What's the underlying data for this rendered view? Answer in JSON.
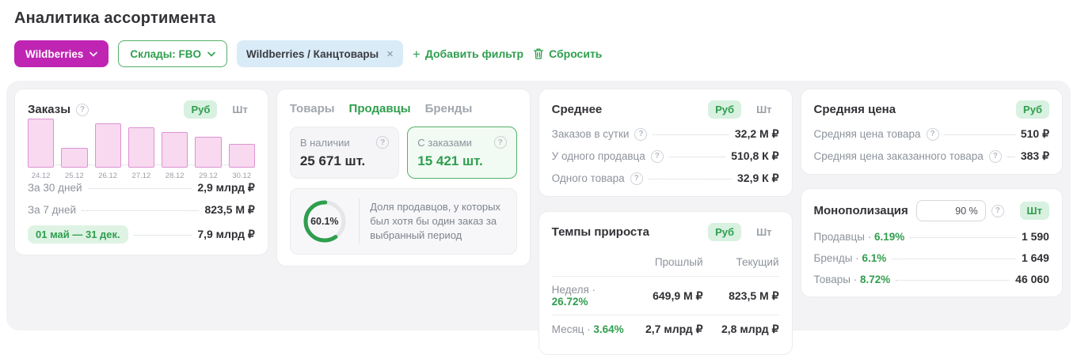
{
  "page": {
    "title": "Аналитика ассортимента"
  },
  "ui": {
    "dot": "·"
  },
  "colors": {
    "accent_green": "#2f9e4e",
    "pill_green_bg": "#d8f1e0",
    "magenta": "#bf25b2",
    "chip_blue": "#d9ebf7",
    "bar_fill": "#f8d9f0",
    "bar_border": "#dd92d4",
    "text_dark": "#2f2f34",
    "text_gray": "#8d939c",
    "board_bg": "#f3f3f5"
  },
  "filters": {
    "marketplace": "Wildberries",
    "warehouse": "Склады: FBO",
    "category_chip": "Wildberries / Канцтовары",
    "add_filter": "Добавить фильтр",
    "reset": "Сбросить"
  },
  "units": {
    "rub": "Руб",
    "pcs": "Шт"
  },
  "chart_data": {
    "type": "bar",
    "title": "Заказы",
    "categories": [
      "24.12",
      "25.12",
      "26.12",
      "27.12",
      "28.12",
      "29.12",
      "30.12"
    ],
    "values_relative_pct": [
      100,
      41,
      90,
      82,
      72,
      63,
      48
    ],
    "bar_color": "#f8d9f0",
    "legend": "none",
    "note_units_toggle": [
      "Руб",
      "Шт"
    ]
  },
  "cards": {
    "orders": {
      "title": "Заказы",
      "rows": [
        {
          "label": "За 30 дней",
          "value": "2,9 млрд ₽"
        },
        {
          "label": "За 7 дней",
          "value": "823,5 М ₽"
        },
        {
          "label": "01 май — 31 дек.",
          "value": "7,9 млрд ₽"
        }
      ]
    },
    "entities": {
      "tabs": [
        {
          "label": "Товары"
        },
        {
          "label": "Продавцы"
        },
        {
          "label": "Бренды"
        }
      ],
      "in_stock": {
        "label": "В наличии",
        "value": "25 671 шт."
      },
      "with_orders": {
        "label": "С заказами",
        "value": "15 421 шт."
      },
      "share": {
        "percent_text": "60.1%",
        "percent_value": 60.1,
        "description": "Доля продавцов, у которых был хотя бы один заказ за выбранный период"
      }
    },
    "average": {
      "title": "Среднее",
      "rows": [
        {
          "label": "Заказов в сутки",
          "value": "32,2 М ₽"
        },
        {
          "label": "У одного продавца",
          "value": "510,8 К ₽"
        },
        {
          "label": "Одного товара",
          "value": "32,9 К ₽"
        }
      ]
    },
    "growth": {
      "title": "Темпы прироста",
      "col_prev": "Прошлый",
      "col_curr": "Текущий",
      "rows": [
        {
          "label": "Неделя",
          "percent": "26.72%",
          "prev": "649,9 М ₽",
          "curr": "823,5 М ₽"
        },
        {
          "label": "Месяц",
          "percent": "3.64%",
          "prev": "2,7 млрд ₽",
          "curr": "2,8 млрд ₽"
        }
      ]
    },
    "avg_price": {
      "title": "Средняя цена",
      "rows": [
        {
          "label": "Средняя цена товара",
          "value": "510 ₽"
        },
        {
          "label": "Средняя цена заказанного товара",
          "value": "383 ₽"
        }
      ]
    },
    "monopolization": {
      "title": "Монополизация",
      "threshold_display": "90 %",
      "rows": [
        {
          "label": "Продавцы",
          "percent": "6.19%",
          "value": "1 590"
        },
        {
          "label": "Бренды",
          "percent": "6.1%",
          "value": "1 649"
        },
        {
          "label": "Товары",
          "percent": "8.72%",
          "value": "46 060"
        }
      ]
    }
  }
}
